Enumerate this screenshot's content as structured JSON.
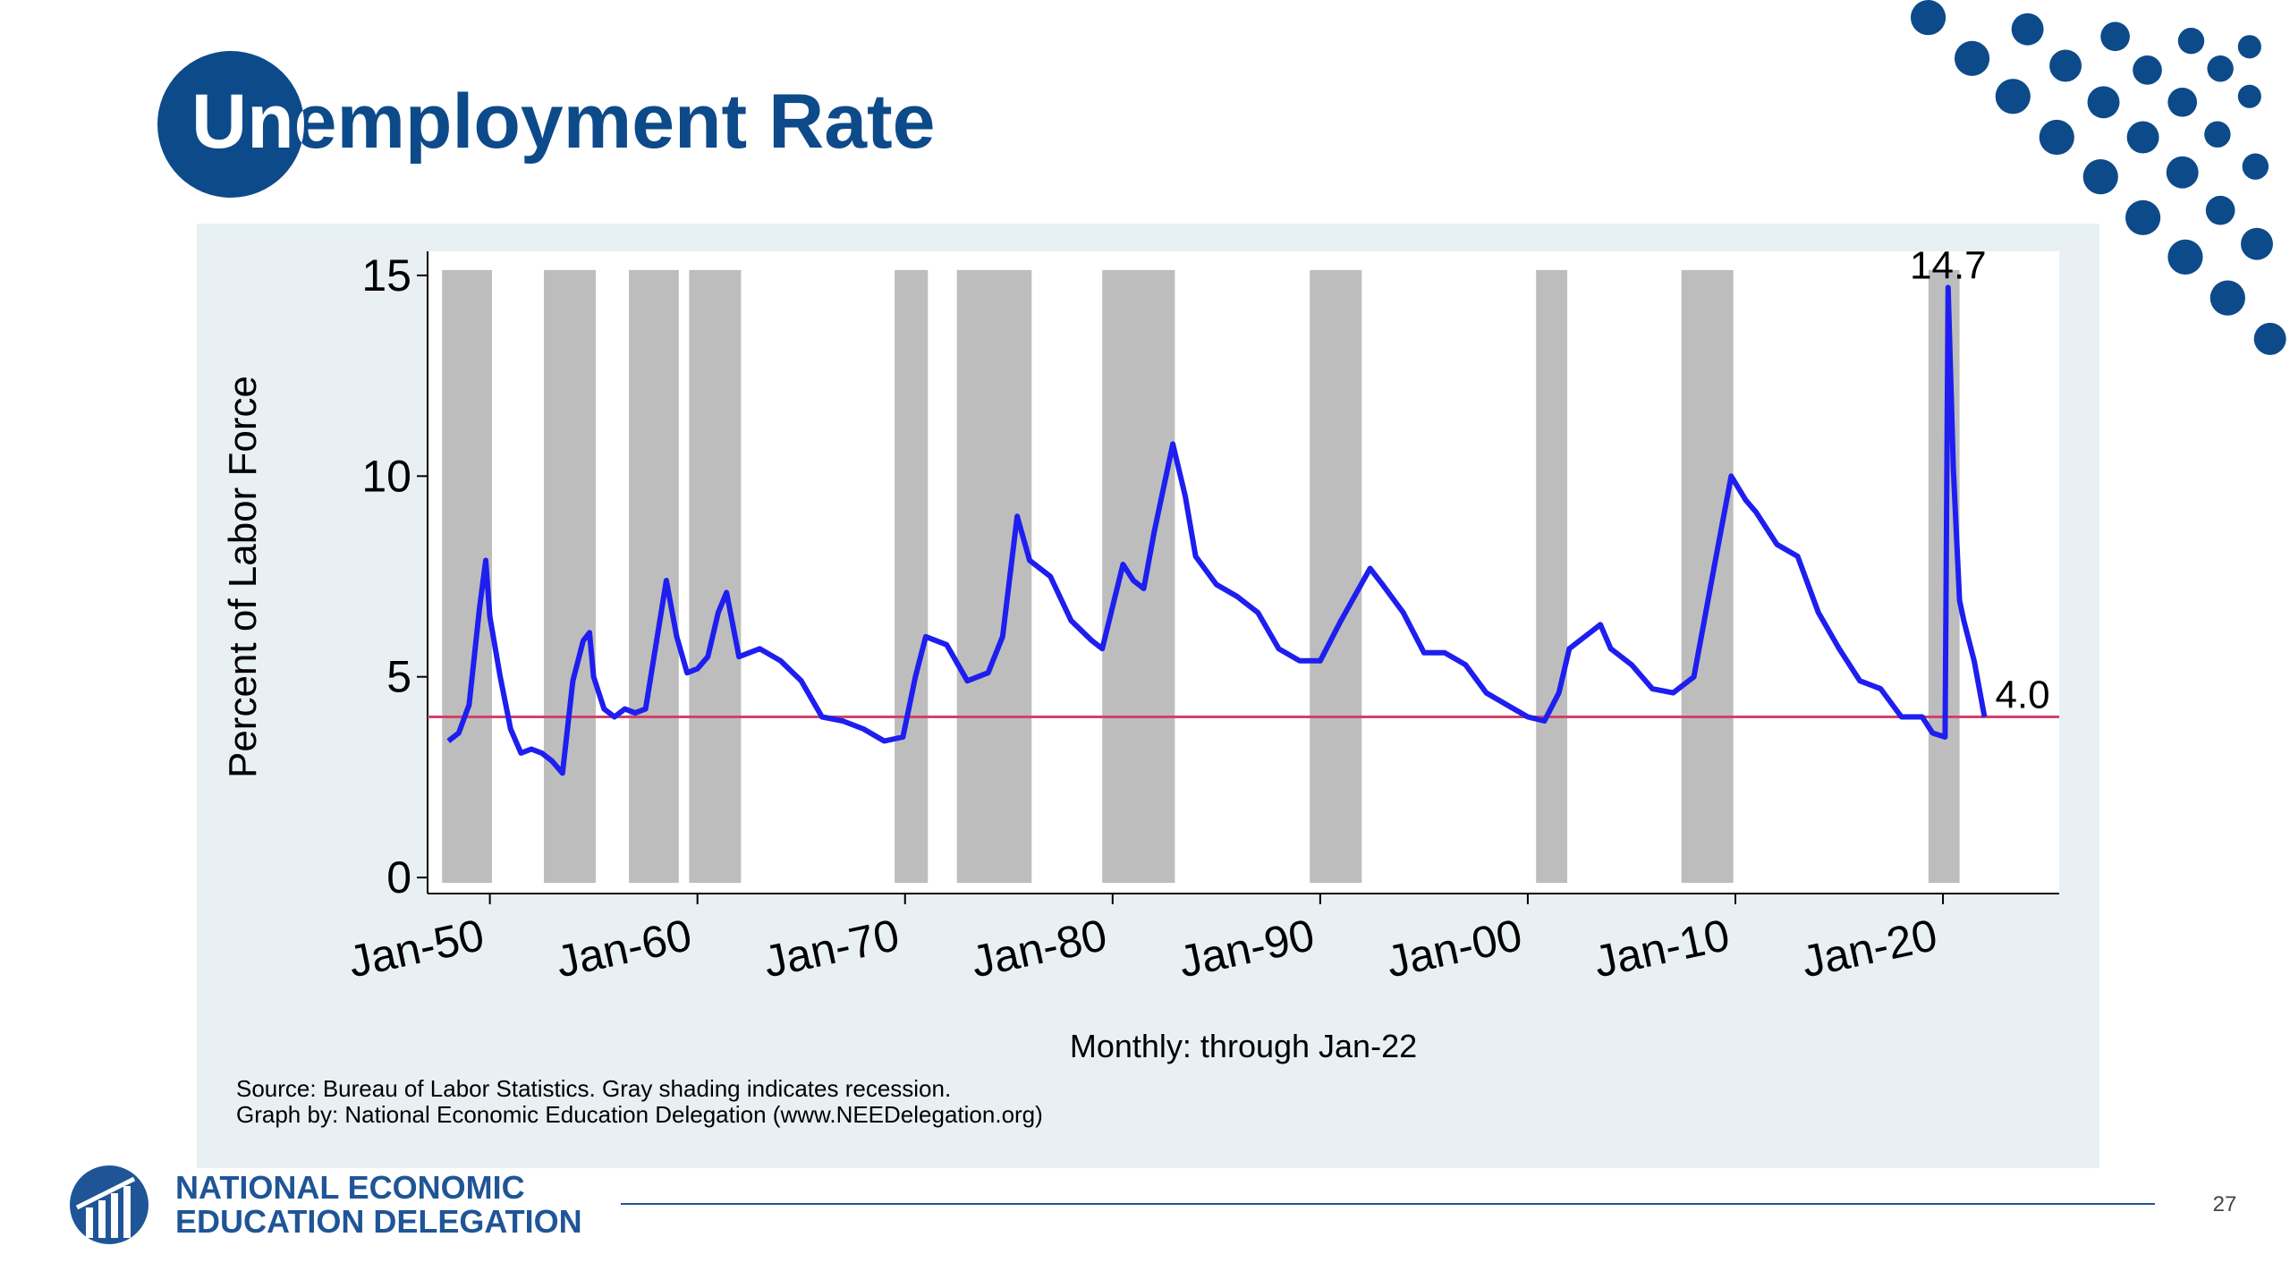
{
  "header": {
    "title": "Unemployment Rate"
  },
  "chart_data": {
    "type": "line",
    "x_label": "Monthly: through Jan-22",
    "y_label": "Percent of Labor Force",
    "notes": [
      "Source: Bureau of Labor Statistics. Gray shading indicates recession.",
      "Graph by: National Economic Education Delegation (www.NEEDelegation.org)"
    ],
    "color": "#1e1ef0",
    "x": [
      1948.0,
      1948.5,
      1949.0,
      1949.5,
      1949.8,
      1950.0,
      1950.5,
      1951.0,
      1951.5,
      1952.0,
      1952.5,
      1953.0,
      1953.5,
      1954.0,
      1954.5,
      1954.8,
      1955.0,
      1955.5,
      1956.0,
      1956.5,
      1957.0,
      1957.5,
      1958.0,
      1958.5,
      1959.0,
      1959.5,
      1960.0,
      1960.5,
      1961.0,
      1961.4,
      1962.0,
      1963.0,
      1964.0,
      1965.0,
      1966.0,
      1967.0,
      1968.0,
      1969.0,
      1969.9,
      1970.5,
      1971.0,
      1972.0,
      1973.0,
      1974.0,
      1974.7,
      1975.4,
      1976.0,
      1977.0,
      1978.0,
      1979.0,
      1979.5,
      1980.5,
      1981.0,
      1981.5,
      1982.0,
      1982.9,
      1983.5,
      1984.0,
      1985.0,
      1986.0,
      1987.0,
      1988.0,
      1989.0,
      1990.0,
      1991.0,
      1992.4,
      1993.0,
      1994.0,
      1995.0,
      1996.0,
      1997.0,
      1998.0,
      1999.0,
      2000.0,
      2000.8,
      2001.5,
      2002.0,
      2003.5,
      2004.0,
      2005.0,
      2006.0,
      2007.0,
      2008.0,
      2009.0,
      2009.8,
      2010.5,
      2011.0,
      2012.0,
      2013.0,
      2014.0,
      2015.0,
      2016.0,
      2017.0,
      2018.0,
      2019.0,
      2019.5,
      2020.1,
      2020.25,
      2020.5,
      2020.8,
      2021.0,
      2021.5,
      2022.0
    ],
    "values": [
      3.4,
      3.6,
      4.3,
      6.7,
      7.9,
      6.5,
      5.0,
      3.7,
      3.1,
      3.2,
      3.1,
      2.9,
      2.6,
      4.9,
      5.9,
      6.1,
      5.0,
      4.2,
      4.0,
      4.2,
      4.1,
      4.2,
      5.8,
      7.4,
      6.0,
      5.1,
      5.2,
      5.5,
      6.6,
      7.1,
      5.5,
      5.7,
      5.4,
      4.9,
      4.0,
      3.9,
      3.7,
      3.4,
      3.5,
      5.0,
      6.0,
      5.8,
      4.9,
      5.1,
      6.0,
      9.0,
      7.9,
      7.5,
      6.4,
      5.9,
      5.7,
      7.8,
      7.4,
      7.2,
      8.6,
      10.8,
      9.5,
      8.0,
      7.3,
      7.0,
      6.6,
      5.7,
      5.4,
      5.4,
      6.4,
      7.7,
      7.3,
      6.6,
      5.6,
      5.6,
      5.3,
      4.6,
      4.3,
      4.0,
      3.9,
      4.6,
      5.7,
      6.3,
      5.7,
      5.3,
      4.7,
      4.6,
      5.0,
      7.8,
      10.0,
      9.4,
      9.1,
      8.3,
      8.0,
      6.6,
      5.7,
      4.9,
      4.7,
      4.0,
      4.0,
      3.6,
      3.5,
      14.7,
      10.2,
      6.9,
      6.4,
      5.4,
      4.0
    ],
    "xlim": [
      1947.0,
      2025.6
    ],
    "xticks": [
      {
        "value": 1950,
        "label": "Jan-50"
      },
      {
        "value": 1960,
        "label": "Jan-60"
      },
      {
        "value": 1970,
        "label": "Jan-70"
      },
      {
        "value": 1980,
        "label": "Jan-80"
      },
      {
        "value": 1990,
        "label": "Jan-90"
      },
      {
        "value": 2000,
        "label": "Jan-00"
      },
      {
        "value": 2010,
        "label": "Jan-10"
      },
      {
        "value": 2020,
        "label": "Jan-20"
      }
    ],
    "ylim": [
      -0.4,
      15.6
    ],
    "yticks": [
      0,
      5,
      10,
      15
    ],
    "recessions": [
      [
        1947.7,
        1950.1
      ],
      [
        1952.6,
        1955.1
      ],
      [
        1956.7,
        1959.1
      ],
      [
        1959.6,
        1962.1
      ],
      [
        1969.5,
        1971.1
      ],
      [
        1972.5,
        1976.1
      ],
      [
        1979.5,
        1983.0
      ],
      [
        1989.5,
        1992.0
      ],
      [
        2000.4,
        2001.9
      ],
      [
        2007.4,
        2009.9
      ],
      [
        2019.3,
        2020.8
      ]
    ],
    "recession_color": "#bdbdbd",
    "hline": {
      "value": 4.0,
      "label": "4.0",
      "color": "#d2416b"
    },
    "annotations": [
      {
        "x": 2020.25,
        "y": 14.7,
        "label": "14.7"
      }
    ]
  },
  "footer": {
    "org": [
      "NATIONAL ECONOMIC",
      "EDUCATION DELEGATION"
    ],
    "page": "27"
  }
}
